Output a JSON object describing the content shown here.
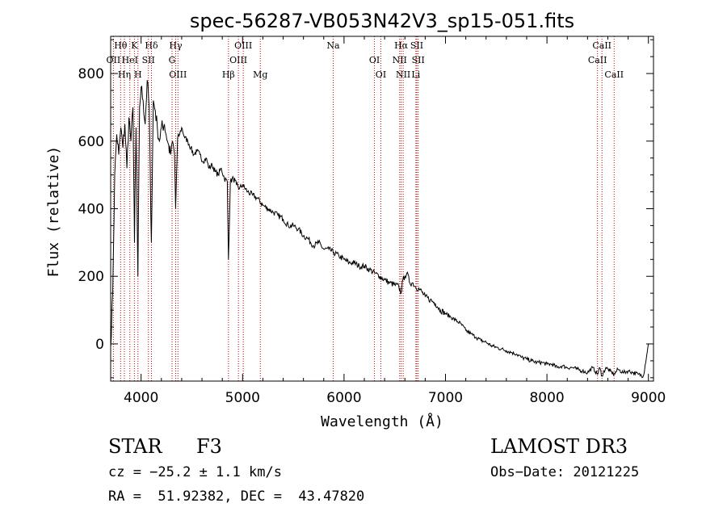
{
  "chart_data": {
    "type": "line",
    "title": "spec-56287-VB053N42V3_sp15-051.fits",
    "xlabel": "Wavelength (Å)",
    "ylabel": "Flux (relative)",
    "xlim": [
      3700,
      9050
    ],
    "ylim": [
      -110,
      910
    ],
    "x_ticks": [
      4000,
      5000,
      6000,
      7000,
      8000,
      9000
    ],
    "y_ticks": [
      0,
      200,
      400,
      600,
      800
    ],
    "grid": false,
    "series": [
      {
        "name": "spectrum",
        "x": [
          3700,
          3720,
          3740,
          3760,
          3780,
          3800,
          3820,
          3840,
          3860,
          3880,
          3900,
          3920,
          3935,
          3950,
          3968,
          3985,
          4000,
          4020,
          4040,
          4060,
          4080,
          4101,
          4120,
          4140,
          4160,
          4180,
          4200,
          4230,
          4260,
          4290,
          4310,
          4330,
          4340,
          4360,
          4380,
          4400,
          4430,
          4460,
          4490,
          4520,
          4550,
          4580,
          4610,
          4640,
          4670,
          4700,
          4730,
          4760,
          4790,
          4820,
          4850,
          4861,
          4880,
          4910,
          4940,
          4970,
          5000,
          5050,
          5100,
          5150,
          5200,
          5250,
          5300,
          5350,
          5400,
          5450,
          5500,
          5550,
          5600,
          5650,
          5700,
          5750,
          5800,
          5850,
          5900,
          5950,
          6000,
          6050,
          6100,
          6150,
          6200,
          6250,
          6300,
          6350,
          6400,
          6450,
          6500,
          6540,
          6563,
          6580,
          6600,
          6620,
          6650,
          6680,
          6700,
          6750,
          6800,
          6850,
          6900,
          6950,
          7000,
          7050,
          7100,
          7150,
          7200,
          7250,
          7300,
          7350,
          7400,
          7450,
          7500,
          7550,
          7600,
          7650,
          7700,
          7750,
          7800,
          7850,
          7900,
          7950,
          8000,
          8050,
          8100,
          8150,
          8200,
          8250,
          8300,
          8350,
          8400,
          8450,
          8498,
          8520,
          8542,
          8580,
          8620,
          8662,
          8700,
          8750,
          8800,
          8850,
          8900,
          8950,
          8990,
          9000
        ],
        "y": [
          -10,
          150,
          500,
          620,
          560,
          640,
          580,
          650,
          520,
          670,
          600,
          700,
          300,
          640,
          200,
          700,
          760,
          720,
          650,
          780,
          700,
          300,
          720,
          690,
          640,
          600,
          640,
          650,
          600,
          560,
          600,
          560,
          400,
          610,
          620,
          640,
          610,
          600,
          580,
          560,
          570,
          560,
          540,
          550,
          520,
          530,
          510,
          500,
          520,
          490,
          480,
          250,
          480,
          490,
          470,
          460,
          470,
          450,
          440,
          430,
          410,
          400,
          390,
          380,
          370,
          350,
          350,
          340,
          320,
          310,
          290,
          300,
          280,
          280,
          270,
          260,
          250,
          240,
          240,
          230,
          230,
          220,
          210,
          200,
          190,
          180,
          175,
          170,
          150,
          190,
          200,
          210,
          180,
          180,
          170,
          160,
          140,
          130,
          120,
          100,
          90,
          80,
          70,
          60,
          40,
          30,
          20,
          10,
          5,
          -5,
          -10,
          -15,
          -20,
          -25,
          -30,
          -40,
          -45,
          -50,
          -55,
          -55,
          -60,
          -60,
          -70,
          -65,
          -70,
          -70,
          -75,
          -80,
          -85,
          -70,
          -90,
          -70,
          -95,
          -70,
          -80,
          -90,
          -75,
          -85,
          -80,
          -85,
          -90,
          -95,
          -20,
          0
        ]
      }
    ],
    "line_groups": [
      [
        {
          "label": "Hθ",
          "x": 3798
        },
        {
          "label": "OII",
          "x": 3727
        },
        {
          "label": "Hη",
          "x": 3835
        },
        {
          "label": "K",
          "x": 3934
        },
        {
          "label": "HeI",
          "x": 3889
        },
        {
          "label": "H",
          "x": 3969
        },
        {
          "label": "Hδ",
          "x": 4102
        },
        {
          "label": "SII",
          "x": 4072
        },
        {
          "label": "OIII",
          "x": 4363
        },
        {
          "label": "Hγ",
          "x": 4341
        },
        {
          "label": "G",
          "x": 4305
        },
        {
          "label": "Hβ",
          "x": 4861
        },
        {
          "label": "OIII",
          "x": 5007
        },
        {
          "label": "OIII",
          "x": 4959
        },
        {
          "label": "Mg",
          "x": 5175
        },
        {
          "label": "Na",
          "x": 5893
        }
      ],
      [
        {
          "label": "OI",
          "x": 6300
        },
        {
          "label": "OI",
          "x": 6363
        },
        {
          "label": "Hα",
          "x": 6563
        },
        {
          "label": "NII",
          "x": 6548
        },
        {
          "label": "NII",
          "x": 6583
        },
        {
          "label": "SII",
          "x": 6717
        },
        {
          "label": "SII",
          "x": 6731
        },
        {
          "label": "Li",
          "x": 6708
        },
        {
          "label": "CaII",
          "x": 8542
        },
        {
          "label": "CaII",
          "x": 8498
        },
        {
          "label": "CaII",
          "x": 8662
        }
      ]
    ]
  },
  "info": {
    "class": "STAR",
    "subclass": "F3",
    "survey": "LAMOST DR3",
    "cz": "cz = −25.2 ± 1.1 km/s",
    "obs_date": "Obs−Date: 20121225",
    "coords": "RA =  51.92382, DEC =  43.47820"
  },
  "colors": {
    "spectrum": "#000000",
    "line_marker": "#cc0000",
    "axis": "#000000"
  }
}
